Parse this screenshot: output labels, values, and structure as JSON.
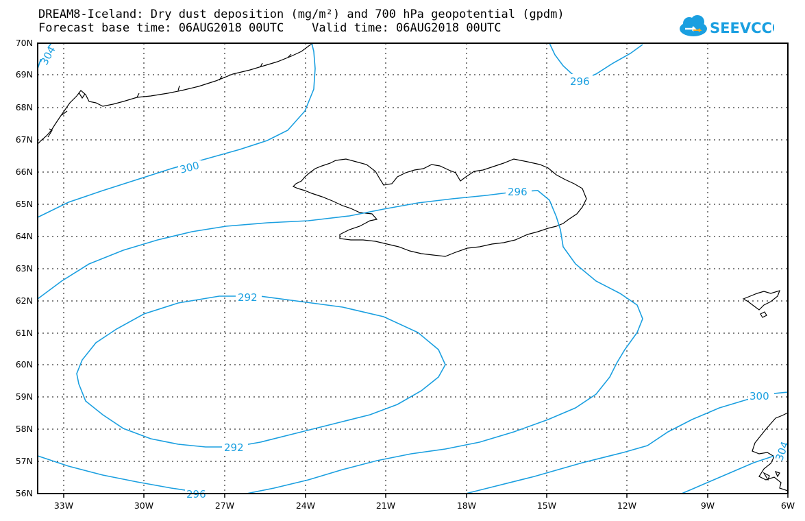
{
  "header": {
    "title_line1": "DREAM8-Iceland: Dry dust deposition (mg/m²) and 700 hPa geopotential (gpdm)",
    "title_line2": "Forecast base time: 06AUG2018 00UTC    Valid time: 06AUG2018 00UTC"
  },
  "logo": {
    "text": "SEEVCCC",
    "icon": "cloud-logo-icon",
    "color": "#1a9fe0"
  },
  "map": {
    "lon_range": [
      -34,
      -6
    ],
    "lat_range": [
      56,
      70
    ],
    "lon_ticks": [
      "33W",
      "30W",
      "27W",
      "24W",
      "21W",
      "18W",
      "15W",
      "12W",
      "9W",
      "6W"
    ],
    "lat_ticks": [
      "56N",
      "57N",
      "58N",
      "59N",
      "60N",
      "61N",
      "62N",
      "63N",
      "64N",
      "65N",
      "66N",
      "67N",
      "68N",
      "69N",
      "70N"
    ],
    "grid": "dotted",
    "coastline_color": "#000000",
    "contour_color": "#1a9fe0",
    "contour_labels": [
      "304",
      "300",
      "296",
      "296",
      "292",
      "292",
      "296",
      "300",
      "304"
    ]
  }
}
